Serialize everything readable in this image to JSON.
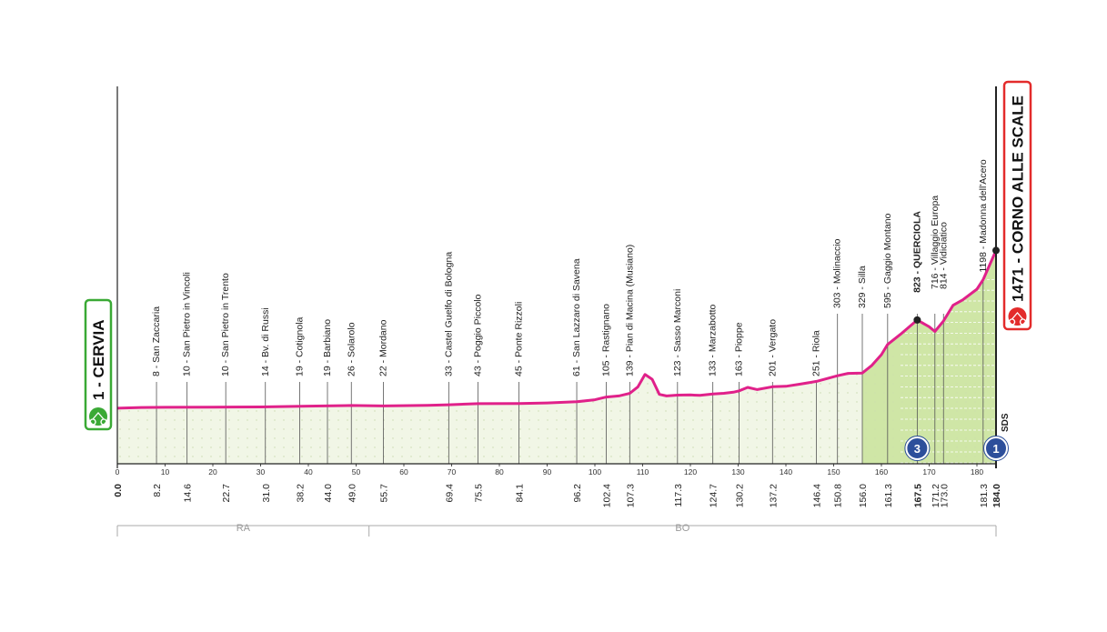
{
  "stage": {
    "start": {
      "altitude": "1",
      "name": "CERVIA",
      "label": "1 - CERVIA"
    },
    "finish": {
      "altitude": "1471",
      "name": "CORNO ALLE SCALE",
      "label": "1471 - CORNO ALLE SCALE"
    },
    "sprint_marker": "SDS",
    "gpm": [
      {
        "category": "3",
        "km": 167.5
      },
      {
        "category": "1",
        "km": 184.0
      }
    ]
  },
  "regions": [
    {
      "label": "RA",
      "from_km": 0,
      "to_km": 52.7
    },
    {
      "label": "BO",
      "from_km": 52.7,
      "to_km": 184.0
    }
  ],
  "chart_data": {
    "type": "area",
    "title": "",
    "xlabel": "",
    "ylabel": "",
    "xlim": [
      0,
      184.0
    ],
    "ylim": [
      0,
      1500
    ],
    "x_ticks": [
      0,
      10,
      20,
      30,
      40,
      50,
      60,
      70,
      80,
      90,
      100,
      110,
      120,
      130,
      140,
      150,
      160,
      170,
      180
    ],
    "y_ticks": [
      0,
      100,
      200,
      300,
      400,
      500,
      600,
      700,
      800,
      900,
      1000,
      1100,
      1200
    ],
    "profile": [
      [
        0,
        1
      ],
      [
        5,
        8
      ],
      [
        10,
        9
      ],
      [
        20,
        10
      ],
      [
        30,
        13
      ],
      [
        40,
        20
      ],
      [
        49,
        26
      ],
      [
        55.7,
        22
      ],
      [
        65,
        27
      ],
      [
        69.4,
        33
      ],
      [
        75.5,
        43
      ],
      [
        84.1,
        45
      ],
      [
        90,
        50
      ],
      [
        96.2,
        61
      ],
      [
        100,
        80
      ],
      [
        102.4,
        105
      ],
      [
        105,
        115
      ],
      [
        107.3,
        139
      ],
      [
        109,
        200
      ],
      [
        110.5,
        315
      ],
      [
        112,
        270
      ],
      [
        113.5,
        130
      ],
      [
        115,
        115
      ],
      [
        117.3,
        123
      ],
      [
        120,
        125
      ],
      [
        122,
        120
      ],
      [
        124.7,
        133
      ],
      [
        127,
        140
      ],
      [
        129,
        150
      ],
      [
        130.2,
        163
      ],
      [
        132,
        195
      ],
      [
        134,
        175
      ],
      [
        137.2,
        201
      ],
      [
        140,
        205
      ],
      [
        143,
        225
      ],
      [
        146.4,
        251
      ],
      [
        150.8,
        303
      ],
      [
        153,
        325
      ],
      [
        156,
        329
      ],
      [
        158,
        400
      ],
      [
        160,
        500
      ],
      [
        161.3,
        595
      ],
      [
        164,
        690
      ],
      [
        167.5,
        823
      ],
      [
        170,
        760
      ],
      [
        171.2,
        716
      ],
      [
        173,
        814
      ],
      [
        175,
        960
      ],
      [
        177,
        1010
      ],
      [
        180,
        1110
      ],
      [
        181.3,
        1198
      ],
      [
        184.0,
        1471
      ]
    ],
    "places": [
      {
        "km": 0.0,
        "altitude": 1,
        "name": "CERVIA"
      },
      {
        "km": 8.2,
        "altitude": 8,
        "name": "San Zaccaria"
      },
      {
        "km": 14.6,
        "altitude": 10,
        "name": "San Pietro in Vincoli"
      },
      {
        "km": 22.7,
        "altitude": 10,
        "name": "San Pietro in Trento"
      },
      {
        "km": 31.0,
        "altitude": 14,
        "name": "Bv. di Russi"
      },
      {
        "km": 38.2,
        "altitude": 19,
        "name": "Cotignola"
      },
      {
        "km": 44.0,
        "altitude": 19,
        "name": "Barbiano"
      },
      {
        "km": 49.0,
        "altitude": 26,
        "name": "Solarolo"
      },
      {
        "km": 55.7,
        "altitude": 22,
        "name": "Mordano"
      },
      {
        "km": 69.4,
        "altitude": 33,
        "name": "Castel Guelfo di Bologna"
      },
      {
        "km": 75.5,
        "altitude": 43,
        "name": "Poggio Piccolo"
      },
      {
        "km": 84.1,
        "altitude": 45,
        "name": "Ponte Rizzoli"
      },
      {
        "km": 96.2,
        "altitude": 61,
        "name": "San Lazzaro di Savena"
      },
      {
        "km": 102.4,
        "altitude": 105,
        "name": "Rastignano"
      },
      {
        "km": 107.3,
        "altitude": 139,
        "name": "Pian di Macina (Musiano)"
      },
      {
        "km": 117.3,
        "altitude": 123,
        "name": "Sasso Marconi"
      },
      {
        "km": 124.7,
        "altitude": 133,
        "name": "Marzabotto"
      },
      {
        "km": 130.2,
        "altitude": 163,
        "name": "Pioppe"
      },
      {
        "km": 137.2,
        "altitude": 201,
        "name": "Vergato"
      },
      {
        "km": 146.4,
        "altitude": 251,
        "name": "Riola"
      },
      {
        "km": 150.8,
        "altitude": 303,
        "name": "Molinaccio"
      },
      {
        "km": 156.0,
        "altitude": 329,
        "name": "Silla"
      },
      {
        "km": 161.3,
        "altitude": 595,
        "name": "Gaggio Montano"
      },
      {
        "km": 167.5,
        "altitude": 823,
        "name": "QUERCIOLA",
        "bold": true
      },
      {
        "km": 171.2,
        "altitude": 716,
        "name": "Villaggio Europa"
      },
      {
        "km": 173.0,
        "altitude": 814,
        "name": "Vidiciatico"
      },
      {
        "km": 181.3,
        "altitude": 1198,
        "name": "Madonna dell'Acero"
      },
      {
        "km": 184.0,
        "altitude": 1471,
        "name": "CORNO ALLE SCALE",
        "bold": true
      }
    ],
    "colors": {
      "profile_line": "#e0218a",
      "flat_fill": "#f1f6e6",
      "climb_fill": "#cfe6a6",
      "start_green": "#3aa935",
      "finish_red": "#e32b2b",
      "gpm_blue": "#2d4f9b"
    }
  }
}
